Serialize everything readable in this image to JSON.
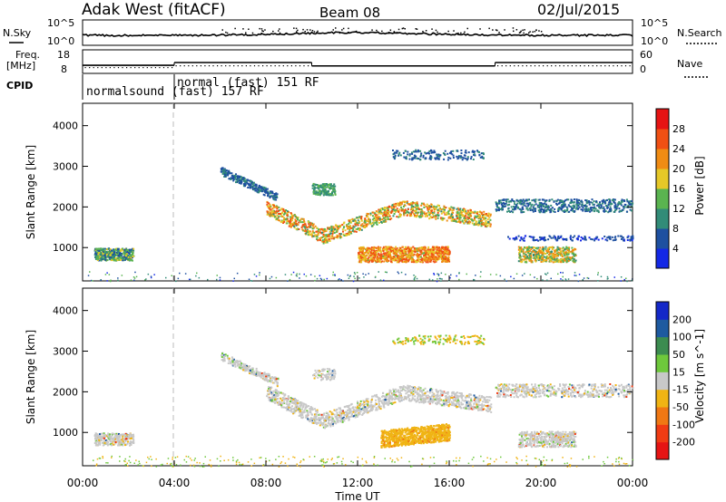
{
  "header": {
    "station": "Adak West (fitACF)",
    "beam": "Beam 08",
    "date": "02/Jul/2015"
  },
  "top_panels": {
    "nsky_label": "N.Sky",
    "nsky_ticks": [
      "10^5",
      "10^0"
    ],
    "nsearch_label": "N.Search",
    "nsearch_ticks": [
      "10^5",
      "10^0"
    ],
    "freq_label_1": "Freq.",
    "freq_label_2": "[MHz]",
    "freq_ticks": [
      "18",
      "8"
    ],
    "nave_label": "Nave",
    "nave_ticks": [
      "60",
      "0"
    ],
    "cpid_label": "CPID",
    "cpid_segments": [
      {
        "label": "normalsound (fast) 157 RF",
        "start_hour": 0,
        "end_hour": 4
      },
      {
        "label": "normal (fast) 151 RF",
        "start_hour": 4,
        "end_hour": 24
      }
    ],
    "freq_steps": [
      {
        "start_hour": 0.0,
        "end_hour": 4.0,
        "freq_mhz": 11.6
      },
      {
        "start_hour": 4.0,
        "end_hour": 10.0,
        "freq_mhz": 13.0
      },
      {
        "start_hour": 10.0,
        "end_hour": 18.0,
        "freq_mhz": 11.3
      },
      {
        "start_hour": 18.0,
        "end_hour": 24.0,
        "freq_mhz": 13.0
      }
    ]
  },
  "power_panel": {
    "ylabel": "Slant Range [km]",
    "yticks": [
      "1000",
      "2000",
      "3000",
      "4000"
    ],
    "colorbar_label": "Power [dB]",
    "colorbar_ticks": [
      "4",
      "8",
      "12",
      "16",
      "20",
      "24",
      "28"
    ],
    "colors": [
      "#1428e6",
      "#1e50a0",
      "#328c78",
      "#5ab450",
      "#e6c828",
      "#f08c14",
      "#f05014",
      "#e61414"
    ]
  },
  "velocity_panel": {
    "ylabel": "Slant Range [km]",
    "yticks": [
      "1000",
      "2000",
      "3000",
      "4000"
    ],
    "colorbar_label": "Velocity [m s^-1]",
    "colorbar_ticks": [
      "200",
      "100",
      "50",
      "15",
      "-15",
      "-50",
      "-100",
      "-200"
    ],
    "colors": [
      "#1428c8",
      "#1e5aa0",
      "#3c8c50",
      "#6ec83c",
      "#c8c8c8",
      "#f0b414",
      "#f07814",
      "#f03c14",
      "#e61414"
    ]
  },
  "xaxis": {
    "label": "Time UT",
    "ticks": [
      "00:00",
      "04:00",
      "08:00",
      "12:00",
      "16:00",
      "20:00",
      "00:00"
    ]
  },
  "chart_data": {
    "type": "heatmap",
    "title": "Adak West (fitACF)  Beam 08  02/Jul/2015",
    "xlabel": "Time UT",
    "ylabel": "Slant Range [km]",
    "xlim_hours": [
      0,
      24
    ],
    "ylim_km": [
      180,
      4550
    ],
    "grid": false,
    "power_features": [
      {
        "name": "morning patch",
        "t0": 0.5,
        "t1": 2.2,
        "r0": 700,
        "r1": 1000,
        "level_db": 12
      },
      {
        "name": "main band",
        "t0": 8.0,
        "t1": 17.8,
        "r_start": 2000,
        "r_mid": 1300,
        "r_end": 1700,
        "level_db": 20
      },
      {
        "name": "elevated echo",
        "t0": 10.0,
        "t1": 11.0,
        "r0": 2300,
        "r1": 2600,
        "level_db": 12
      },
      {
        "name": "near-range band",
        "t0": 12.0,
        "t1": 16.0,
        "r0": 650,
        "r1": 1050,
        "level_db": 24
      },
      {
        "name": "evening band",
        "t0": 18.0,
        "t1": 24.0,
        "r0": 1900,
        "r1": 2200,
        "level_db": 8
      },
      {
        "name": "evening patch",
        "t0": 19.0,
        "t1": 21.5,
        "r0": 650,
        "r1": 1050,
        "level_db": 20
      }
    ],
    "velocity_features": [
      {
        "name": "main band",
        "t0": 8.0,
        "t1": 17.8,
        "velocity_class": "-15 to 15"
      },
      {
        "name": "near-range band",
        "t0": 13.0,
        "t1": 16.0,
        "velocity_class": "-50 to -15"
      },
      {
        "name": "evening band",
        "t0": 18.0,
        "t1": 24.0,
        "velocity_class": "-15 to 15"
      }
    ]
  }
}
